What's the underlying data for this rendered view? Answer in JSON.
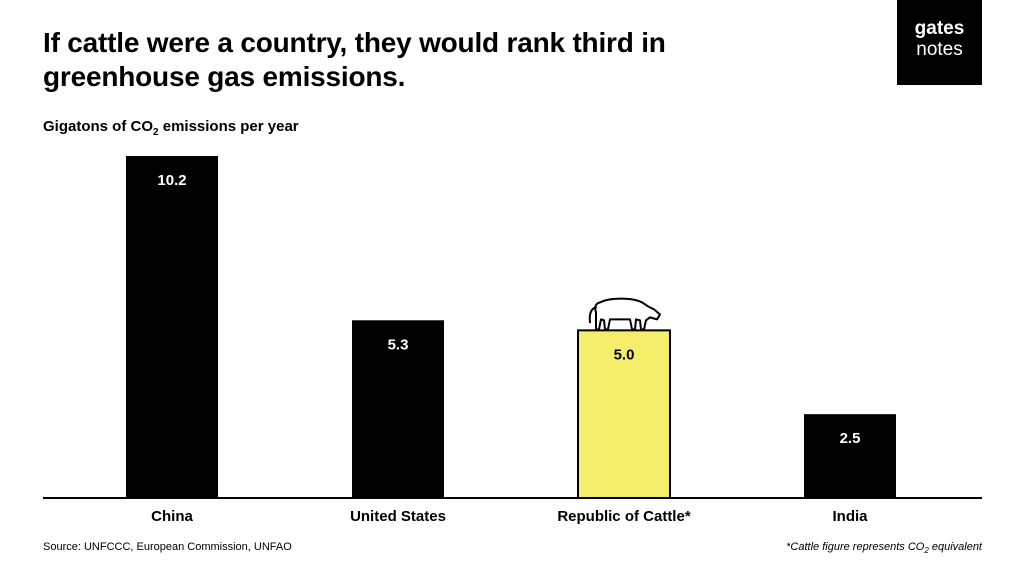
{
  "title": "If cattle were a country, they would rank third in greenhouse gas emissions.",
  "subtitle": {
    "prefix": "Gigatons of CO",
    "sub": "2",
    "suffix": " emissions per year"
  },
  "logo": {
    "line1": "gates",
    "line2": "notes"
  },
  "footer": {
    "source": "Source: UNFCCC, European Commission, UNFAO",
    "note_prefix": "*Cattle figure represents CO",
    "note_sub": "2",
    "note_suffix": " equivalent"
  },
  "colors": {
    "bar": "#000000",
    "highlight": "#f5ee6a",
    "axis": "#000000"
  },
  "icons": {
    "highlight_icon": "cow-icon"
  },
  "chart_data": {
    "type": "bar",
    "categories": [
      "China",
      "United States",
      "Republic of Cattle*",
      "India"
    ],
    "values": [
      10.2,
      5.3,
      5.0,
      2.5
    ],
    "value_labels": [
      "10.2",
      "5.3",
      "5.0",
      "2.5"
    ],
    "highlight_index": 2,
    "ylim": [
      0,
      10.2
    ],
    "grid": false,
    "xlabel": "",
    "ylabel": ""
  }
}
